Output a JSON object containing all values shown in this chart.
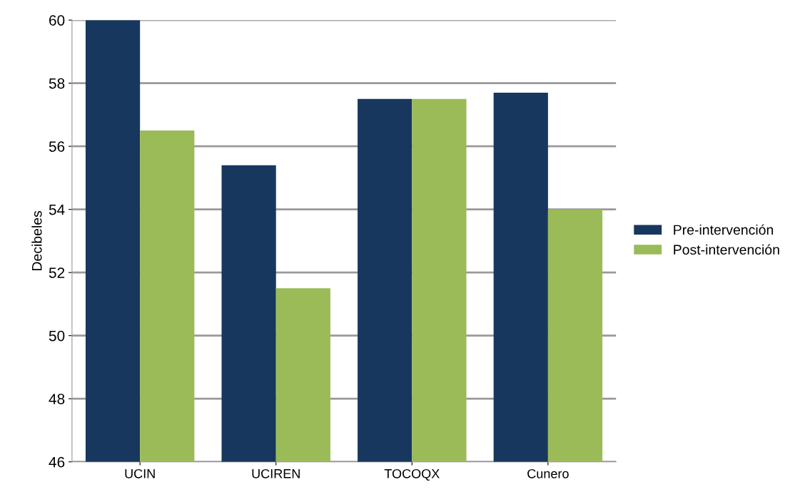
{
  "chart_data": {
    "type": "bar",
    "ylabel": "Decibeles",
    "categories": [
      "UCIN",
      "UCIREN",
      "TOCOQX",
      "Cunero"
    ],
    "series": [
      {
        "name": "Pre-intervención",
        "color": "#17375e",
        "values": [
          60.0,
          55.4,
          57.5,
          57.7
        ]
      },
      {
        "name": "Post-intervención",
        "color": "#9bbb59",
        "values": [
          56.5,
          51.5,
          57.5,
          54.0
        ]
      }
    ],
    "ylim": [
      46,
      60
    ],
    "yticks": [
      46,
      48,
      50,
      52,
      54,
      56,
      58,
      60
    ],
    "grid": "y",
    "legend": "right"
  }
}
